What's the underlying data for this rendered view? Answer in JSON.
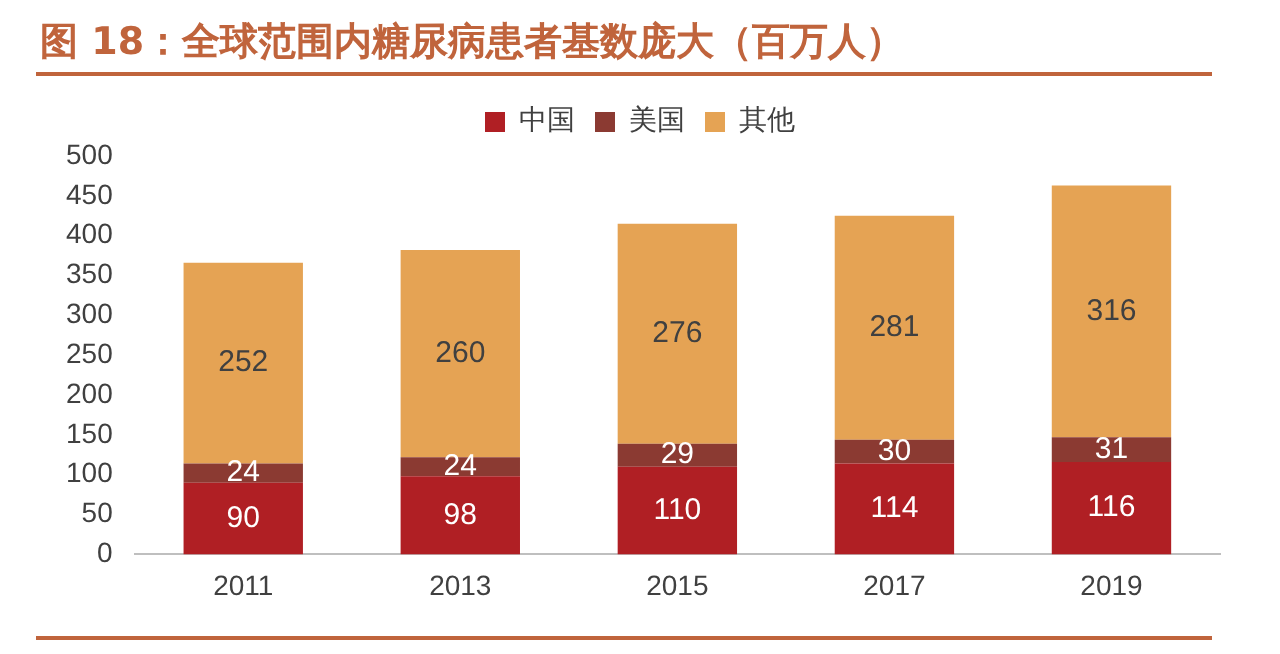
{
  "chart_data": {
    "type": "bar",
    "title": "图 18：全球范围内糖尿病患者基数庞大（百万人）",
    "categories": [
      "2011",
      "2013",
      "2015",
      "2017",
      "2019"
    ],
    "stacked": true,
    "series": [
      {
        "name": "中国",
        "color": "#b01f24",
        "values": [
          90,
          98,
          110,
          114,
          116
        ]
      },
      {
        "name": "美国",
        "color": "#8b3a32",
        "values": [
          24,
          24,
          29,
          30,
          31
        ]
      },
      {
        "name": "其他",
        "color": "#e5a354",
        "values": [
          252,
          260,
          276,
          281,
          316
        ]
      }
    ],
    "ylim": [
      0,
      500
    ],
    "yticks": [
      0,
      50,
      100,
      150,
      200,
      250,
      300,
      350,
      400,
      450,
      500
    ],
    "grid": false,
    "legend": "top",
    "data_labels": true
  }
}
